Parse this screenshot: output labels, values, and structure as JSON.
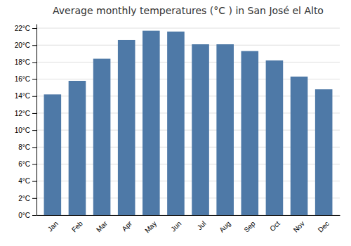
{
  "chart_data": {
    "type": "bar",
    "title": "Average monthly temperatures (°C ) in San José el Alto",
    "categories": [
      "Jan",
      "Feb",
      "Mar",
      "Apr",
      "May",
      "Jun",
      "Jul",
      "Aug",
      "Sep",
      "Oct",
      "Nov",
      "Dec"
    ],
    "values": [
      14.2,
      15.8,
      18.4,
      20.6,
      21.7,
      21.6,
      20.1,
      20.1,
      19.3,
      18.2,
      16.3,
      14.8
    ],
    "ylim": [
      0,
      22.5
    ],
    "yticks": [
      {
        "value": 0,
        "label": "0°C"
      },
      {
        "value": 2,
        "label": "2°C"
      },
      {
        "value": 4,
        "label": "4°C"
      },
      {
        "value": 6,
        "label": "6°C"
      },
      {
        "value": 8,
        "label": "8°C"
      },
      {
        "value": 10,
        "label": "10°C"
      },
      {
        "value": 12,
        "label": "12°C"
      },
      {
        "value": 14,
        "label": "14°C"
      },
      {
        "value": 16,
        "label": "16°C"
      },
      {
        "value": 18,
        "label": "18°C"
      },
      {
        "value": 20,
        "label": "20°C"
      },
      {
        "value": 22,
        "label": "22°C"
      }
    ],
    "grid": true
  }
}
